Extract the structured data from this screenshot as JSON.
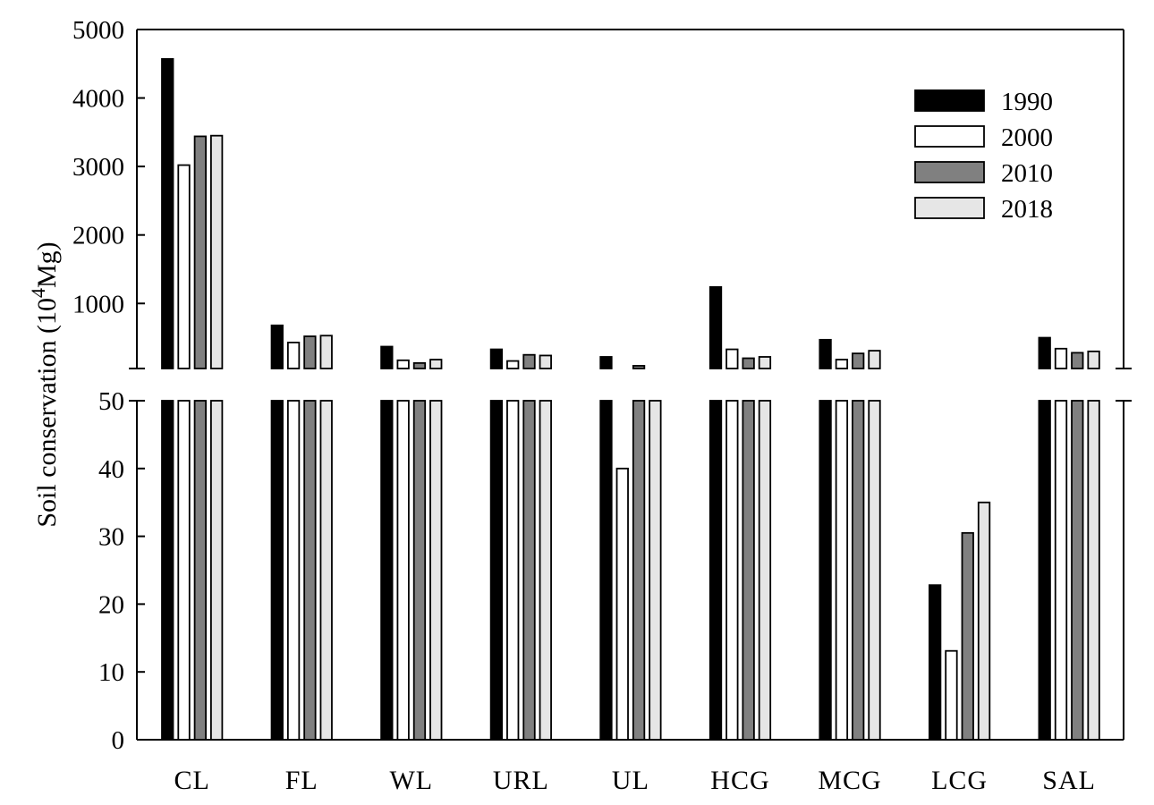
{
  "chart_data": {
    "type": "bar",
    "ylabel": "Soil conservation (10",
    "ylabel_superscript": "4",
    "ylabel_suffix": "Mg)",
    "categories": [
      "CL",
      "FL",
      "WL",
      "URL",
      "UL",
      "HCG",
      "MCG",
      "LCG",
      "SAL"
    ],
    "series": [
      {
        "name": "1990",
        "color": "#000000",
        "values": [
          4570,
          680,
          370,
          330,
          220,
          1240,
          470,
          22.8,
          500
        ]
      },
      {
        "name": "2000",
        "color": "#ffffff",
        "values": [
          3020,
          430,
          170,
          160,
          40,
          330,
          180,
          13.1,
          340
        ]
      },
      {
        "name": "2010",
        "color": "#808080",
        "values": [
          3440,
          520,
          130,
          250,
          90,
          200,
          270,
          30.5,
          280
        ]
      },
      {
        "name": "2018",
        "color": "#e6e6e6",
        "values": [
          3450,
          530,
          180,
          240,
          50,
          220,
          310,
          35.0,
          300
        ]
      }
    ],
    "lower_axis": {
      "ylim": [
        0,
        50
      ],
      "ticks": [
        "0",
        "10",
        "20",
        "30",
        "40",
        "50"
      ]
    },
    "upper_axis": {
      "ylim": [
        50,
        5000
      ],
      "ticks": [
        "1000",
        "2000",
        "3000",
        "4000",
        "5000"
      ]
    },
    "broken_axis": true,
    "legend_position": "top-right",
    "grid": false
  }
}
